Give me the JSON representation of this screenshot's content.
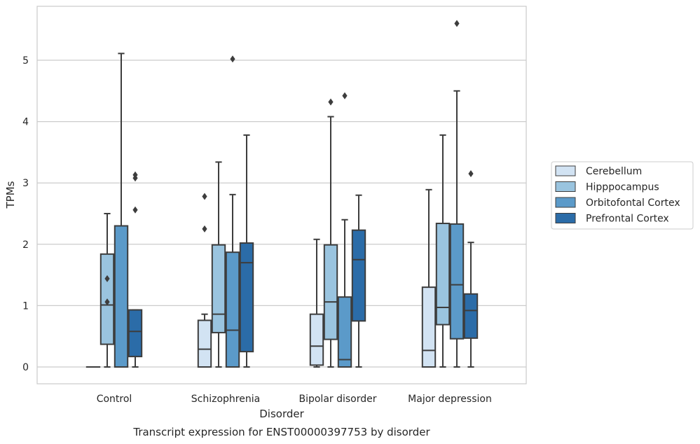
{
  "chart_data": {
    "type": "box",
    "caption": "Transcript expression for ENST00000397753 by disorder",
    "xlabel": "Disorder",
    "ylabel": "TPMs",
    "ylim": [
      -0.27,
      5.88
    ],
    "yticks": [
      0,
      1,
      2,
      3,
      4,
      5
    ],
    "grid": "horizontal",
    "legend_position": "right",
    "categories": [
      "Control",
      "Schizophrenia",
      "Bipolar disorder",
      "Major depression"
    ],
    "series": [
      {
        "name": "Cerebellum",
        "color": "#d2e3f3",
        "boxes": [
          {
            "whislo": 0,
            "q1": 0,
            "med": 0,
            "q3": 0,
            "whishi": 0,
            "fliers": []
          },
          {
            "whislo": 0,
            "q1": 0,
            "med": 0.29,
            "q3": 0.76,
            "whishi": 0.86,
            "fliers": [
              2.25,
              2.78
            ]
          },
          {
            "whislo": 0,
            "q1": 0.03,
            "med": 0.34,
            "q3": 0.86,
            "whishi": 2.08,
            "fliers": []
          },
          {
            "whislo": 0,
            "q1": 0,
            "med": 0.27,
            "q3": 1.3,
            "whishi": 2.89,
            "fliers": []
          }
        ]
      },
      {
        "name": "Hipppocampus",
        "color": "#9ac4df",
        "boxes": [
          {
            "whislo": 0,
            "q1": 0.37,
            "med": 1.01,
            "q3": 1.84,
            "whishi": 2.5,
            "fliers": [
              1.06,
              1.44
            ]
          },
          {
            "whislo": 0,
            "q1": 0.56,
            "med": 0.86,
            "q3": 1.99,
            "whishi": 3.34,
            "fliers": []
          },
          {
            "whislo": 0,
            "q1": 0.45,
            "med": 1.06,
            "q3": 1.99,
            "whishi": 4.08,
            "fliers": [
              4.32
            ]
          },
          {
            "whislo": 0,
            "q1": 0.69,
            "med": 0.97,
            "q3": 2.34,
            "whishi": 3.78,
            "fliers": []
          }
        ]
      },
      {
        "name": "Orbitofontal Cortex",
        "color": "#5b9ac9",
        "boxes": [
          {
            "whislo": 0,
            "q1": 0,
            "med": 0,
            "q3": 2.3,
            "whishi": 5.11,
            "fliers": []
          },
          {
            "whislo": 0,
            "q1": 0,
            "med": 0.6,
            "q3": 1.87,
            "whishi": 2.81,
            "fliers": [
              5.02
            ]
          },
          {
            "whislo": 0,
            "q1": 0,
            "med": 0.12,
            "q3": 1.14,
            "whishi": 2.4,
            "fliers": [
              4.42
            ]
          },
          {
            "whislo": 0,
            "q1": 0.46,
            "med": 1.34,
            "q3": 2.33,
            "whishi": 4.5,
            "fliers": [
              5.6
            ]
          }
        ]
      },
      {
        "name": "Prefrontal Cortex",
        "color": "#2b6ca8",
        "boxes": [
          {
            "whislo": 0,
            "q1": 0.17,
            "med": 0.58,
            "q3": 0.93,
            "whishi": 0.93,
            "fliers": [
              2.56,
              3.08,
              3.13
            ]
          },
          {
            "whislo": 0,
            "q1": 0.25,
            "med": 1.7,
            "q3": 2.02,
            "whishi": 3.78,
            "fliers": []
          },
          {
            "whislo": 0,
            "q1": 0.75,
            "med": 1.75,
            "q3": 2.23,
            "whishi": 2.8,
            "fliers": []
          },
          {
            "whislo": 0,
            "q1": 0.47,
            "med": 0.92,
            "q3": 1.19,
            "whishi": 2.03,
            "fliers": [
              3.15
            ]
          }
        ]
      }
    ]
  }
}
